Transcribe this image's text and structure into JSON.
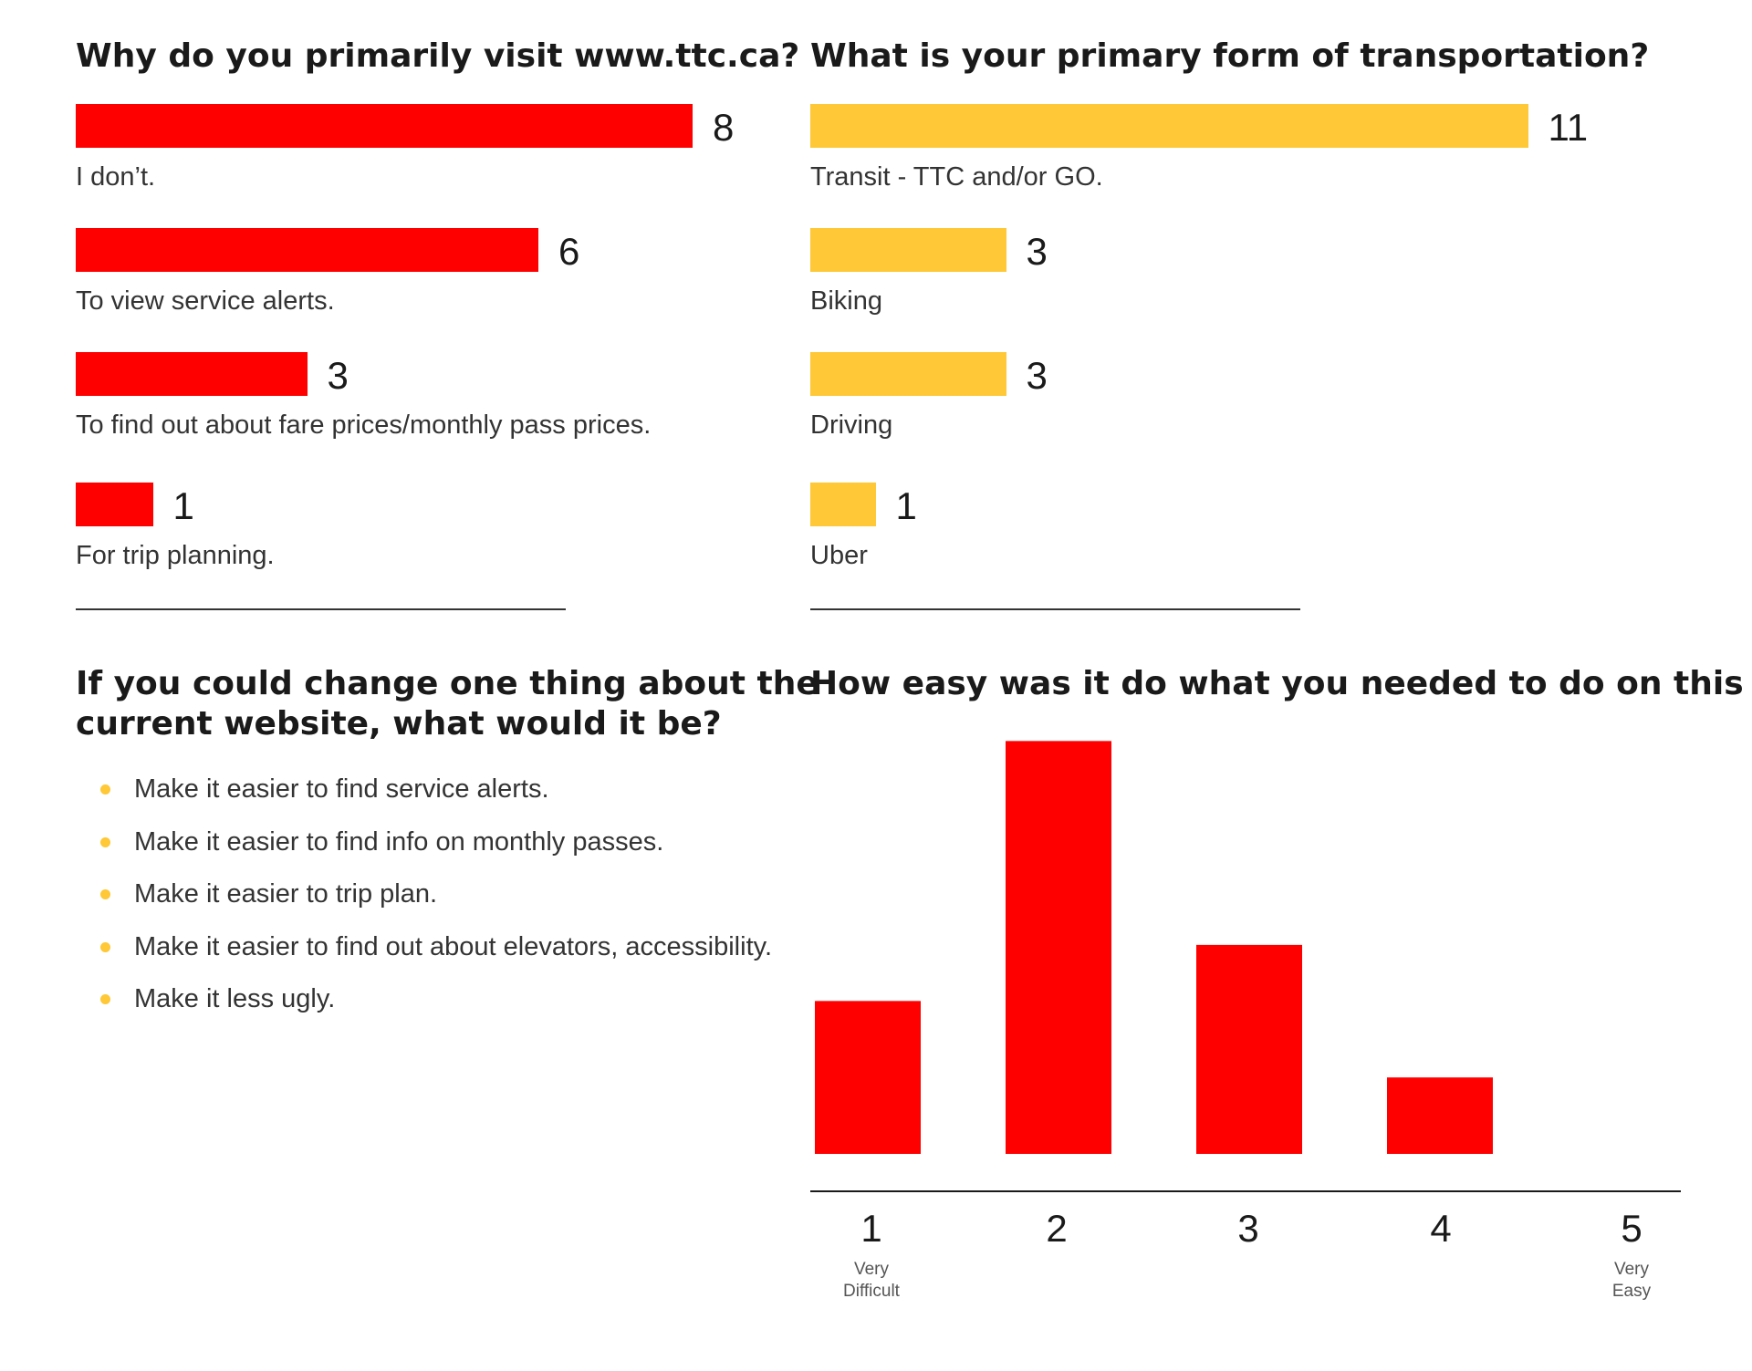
{
  "colors": {
    "red": "#ff0000",
    "yellow": "#fec836",
    "bullet": "#fec836",
    "axis": "#1a1a1a"
  },
  "panel1": {
    "title": "Why do you primarily visit www.ttc.ca?"
  },
  "panel2": {
    "title": "What is your primary form of transportation?"
  },
  "panel3": {
    "title_line1": "If you could change one thing about the",
    "title_line2": "current website, what would it be?",
    "items": [
      "Make it easier to find service alerts.",
      "Make it easier to find info on monthly passes.",
      "Make it easier to trip plan.",
      "Make it easier to find out about elevators, accessibility.",
      "Make it less ugly."
    ]
  },
  "panel4": {
    "title": "How easy was it do what you needed to do on this"
  },
  "chart_data": [
    {
      "type": "bar",
      "orientation": "horizontal",
      "title": "Why do you primarily visit www.ttc.ca?",
      "categories": [
        "I don’t.",
        "To view service alerts.",
        "To find out about fare prices/monthly pass prices.",
        "For trip planning."
      ],
      "values": [
        8,
        6,
        3,
        1
      ],
      "color": "#ff0000",
      "grid": false
    },
    {
      "type": "bar",
      "orientation": "horizontal",
      "title": "What is your primary form of transportation?",
      "categories": [
        "Transit - TTC and/or GO.",
        "Biking",
        "Driving",
        "Uber"
      ],
      "values": [
        11,
        3,
        3,
        1
      ],
      "color": "#fec836",
      "grid": false
    },
    {
      "type": "bar",
      "orientation": "vertical",
      "title": "How easy was it do what you needed to do on this",
      "categories": [
        "1",
        "2",
        "3",
        "4",
        "5"
      ],
      "category_sublabels": [
        [
          "Very",
          "Difficult"
        ],
        [],
        [],
        [],
        [
          "Very",
          "Easy"
        ]
      ],
      "values": [
        3,
        8.1,
        4.1,
        1.5,
        0
      ],
      "ylim": [
        0,
        8.5
      ],
      "color": "#ff0000",
      "grid": false
    }
  ]
}
